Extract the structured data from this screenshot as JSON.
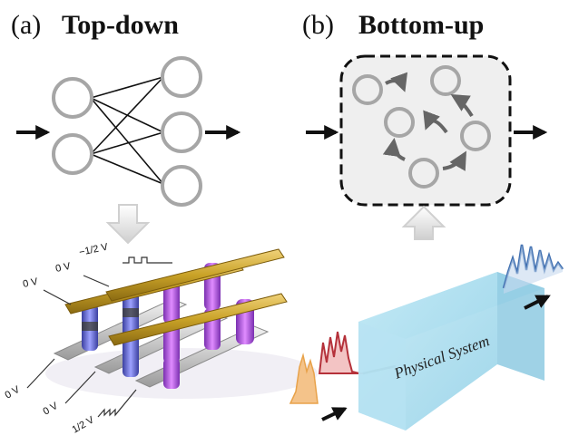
{
  "panel_a": {
    "letter": "(a)",
    "title": "Top-down"
  },
  "panel_b": {
    "letter": "(b)",
    "title": "Bottom-up"
  },
  "crossbar": {
    "voltages": [
      "−1/2 V",
      "0 V",
      "0 V",
      "0 V",
      "0 V",
      "1/2 V"
    ]
  },
  "physical_system": {
    "label": "Physical System"
  },
  "colors": {
    "node_gray": "#a6a6a6",
    "gold": "#c9a227",
    "purple": "#b34fe0",
    "blue_pillar": "#6b6fd9",
    "cube": "#a9dced",
    "wave_blue": "#3f6fb0",
    "wave_red": "#b5313a",
    "wave_orange": "#e8a24a"
  }
}
